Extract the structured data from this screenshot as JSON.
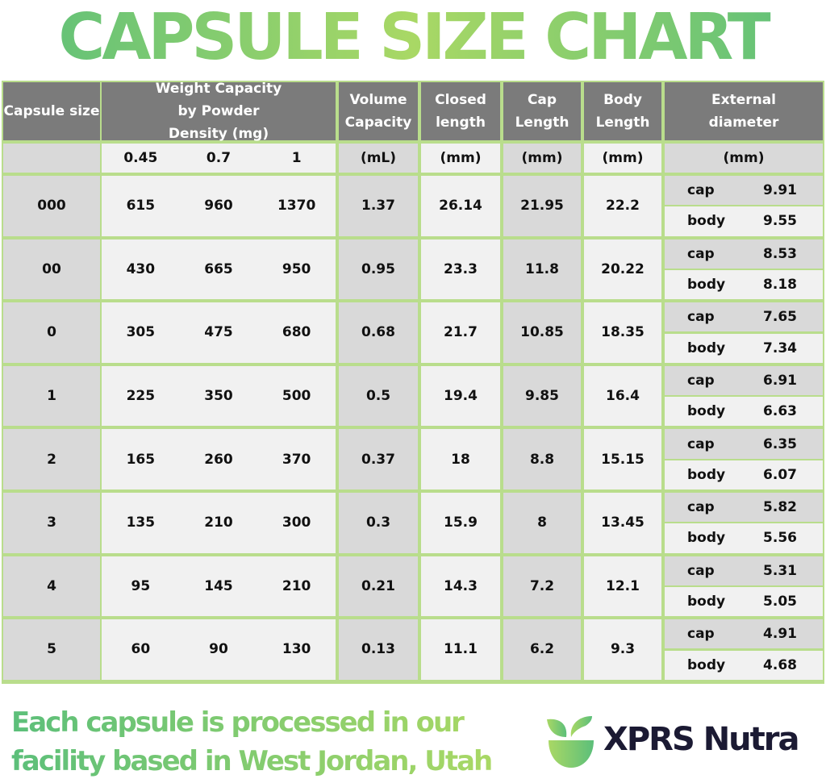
{
  "title": "CAPSULE SIZE CHART",
  "headers": {
    "capsule_size": "Capsule size",
    "weight": "Weight Capacity by Powder Density (mg)",
    "volume": "Volume Capacity",
    "closed": "Closed length",
    "cap": "Cap Length",
    "body": "Body Length",
    "external": "External diameter"
  },
  "units": {
    "densities": [
      "0.45",
      "0.7",
      "1"
    ],
    "volume": "(mL)",
    "closed": "(mm)",
    "cap": "(mm)",
    "body": "(mm)",
    "external": "(mm)"
  },
  "labels": {
    "cap": "cap",
    "body": "body"
  },
  "chart_data": {
    "type": "table",
    "title": "CAPSULE SIZE CHART",
    "rows": [
      {
        "size": "000",
        "weights": [
          "615",
          "960",
          "1370"
        ],
        "volume": "1.37",
        "closed": "26.14",
        "cap": "21.95",
        "body": "22.2",
        "ext_cap": "9.91",
        "ext_body": "9.55"
      },
      {
        "size": "00",
        "weights": [
          "430",
          "665",
          "950"
        ],
        "volume": "0.95",
        "closed": "23.3",
        "cap": "11.8",
        "body": "20.22",
        "ext_cap": "8.53",
        "ext_body": "8.18"
      },
      {
        "size": "0",
        "weights": [
          "305",
          "475",
          "680"
        ],
        "volume": "0.68",
        "closed": "21.7",
        "cap": "10.85",
        "body": "18.35",
        "ext_cap": "7.65",
        "ext_body": "7.34"
      },
      {
        "size": "1",
        "weights": [
          "225",
          "350",
          "500"
        ],
        "volume": "0.5",
        "closed": "19.4",
        "cap": "9.85",
        "body": "16.4",
        "ext_cap": "6.91",
        "ext_body": "6.63"
      },
      {
        "size": "2",
        "weights": [
          "165",
          "260",
          "370"
        ],
        "volume": "0.37",
        "closed": "18",
        "cap": "8.8",
        "body": "15.15",
        "ext_cap": "6.35",
        "ext_body": "6.07"
      },
      {
        "size": "3",
        "weights": [
          "135",
          "210",
          "300"
        ],
        "volume": "0.3",
        "closed": "15.9",
        "cap": "8",
        "body": "13.45",
        "ext_cap": "5.82",
        "ext_body": "5.56"
      },
      {
        "size": "4",
        "weights": [
          "95",
          "145",
          "210"
        ],
        "volume": "0.21",
        "closed": "14.3",
        "cap": "7.2",
        "body": "12.1",
        "ext_cap": "5.31",
        "ext_body": "5.05"
      },
      {
        "size": "5",
        "weights": [
          "60",
          "90",
          "130"
        ],
        "volume": "0.13",
        "closed": "11.1",
        "cap": "6.2",
        "body": "9.3",
        "ext_cap": "4.91",
        "ext_body": "4.68"
      }
    ]
  },
  "footer": {
    "line1": "Each capsule is processed in our",
    "line2": "facility based in West Jordan, Utah"
  },
  "brand": {
    "name": "XPRS Nutra"
  },
  "colors": {
    "green": "#a9d865",
    "teal_green": "#5cbf7a",
    "header_gray": "#7b7b7b",
    "cell_gray": "#d9d9d9",
    "cell_light": "#f1f1f1",
    "brand_dark": "#1b1a33"
  }
}
